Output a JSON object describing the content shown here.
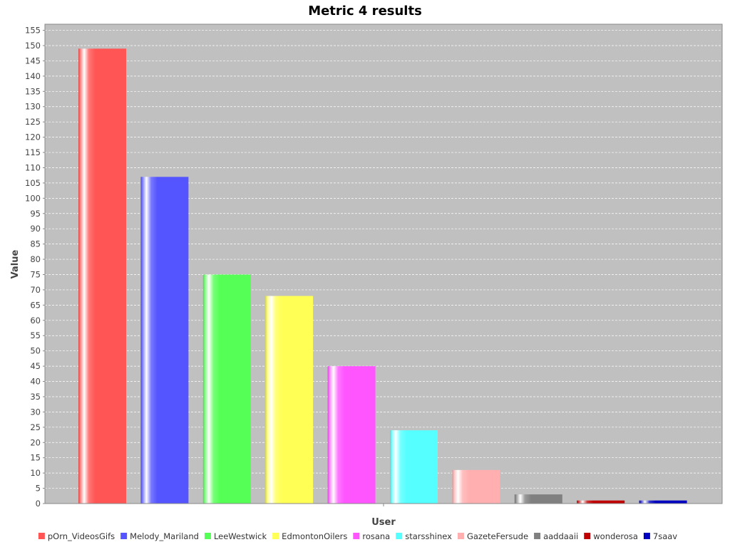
{
  "chart_data": {
    "type": "bar",
    "title": "Metric 4 results",
    "xlabel": "User",
    "ylabel": "Value",
    "ylim": [
      0,
      157
    ],
    "ytick_step": 5,
    "grid": true,
    "legend_position": "bottom",
    "series": [
      {
        "name": "pOrn_VideosGifs",
        "value": 149,
        "color": "#ff5555"
      },
      {
        "name": "Melody_Mariland",
        "value": 107,
        "color": "#5555ff"
      },
      {
        "name": "LeeWestwick",
        "value": 75,
        "color": "#55ff55"
      },
      {
        "name": "EdmontonOilers",
        "value": 68,
        "color": "#ffff55"
      },
      {
        "name": "rosana",
        "value": 45,
        "color": "#ff55ff"
      },
      {
        "name": "starsshinex",
        "value": 24,
        "color": "#55ffff"
      },
      {
        "name": "GazeteFersude",
        "value": 11,
        "color": "#ffafaf"
      },
      {
        "name": "aaddaaii",
        "value": 3,
        "color": "#808080"
      },
      {
        "name": "wonderosa",
        "value": 1,
        "color": "#c00000"
      },
      {
        "name": "7saav",
        "value": 1,
        "color": "#0000c0"
      }
    ],
    "colors": {
      "plot_background": "#c0c0c0",
      "gridline": "#ffffff",
      "axis": "#888888"
    }
  }
}
